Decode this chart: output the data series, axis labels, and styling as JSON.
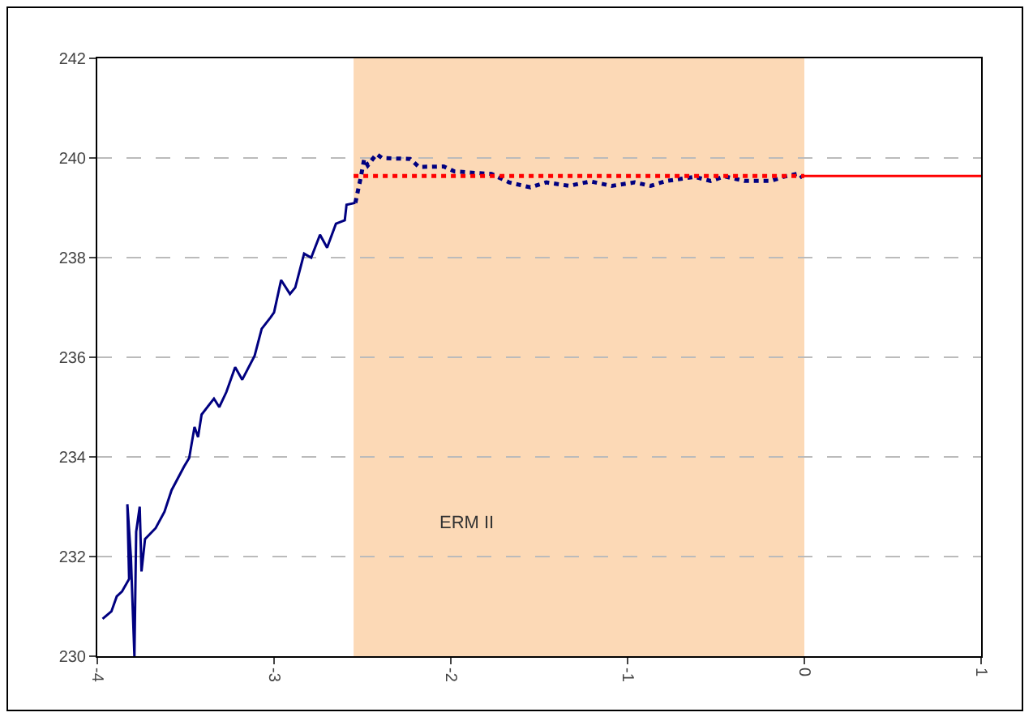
{
  "chart_data": {
    "type": "line",
    "xlim": [
      -4,
      1
    ],
    "xticks": [
      -4,
      -3,
      -2,
      -1,
      0,
      1
    ],
    "ylim": [
      230,
      242
    ],
    "yticks": [
      230,
      232,
      234,
      236,
      238,
      240,
      242
    ],
    "grid": "y",
    "bands": [
      {
        "axis": "x",
        "from": -2.55,
        "to": 0,
        "label": "ERM II",
        "color": "#fcd9b6"
      }
    ],
    "series": [
      {
        "color": "#000080",
        "line_style": "solid",
        "x": [
          -3.97,
          -3.92,
          -3.89,
          -3.86,
          -3.82,
          -3.83,
          -3.81,
          -3.79,
          -3.78,
          -3.76,
          -3.75,
          -3.73,
          -3.67,
          -3.62,
          -3.58,
          -3.51,
          -3.48,
          -3.45,
          -3.43,
          -3.41,
          -3.34,
          -3.31,
          -3.27,
          -3.22,
          -3.18,
          -3.11,
          -3.07,
          -3.02,
          -3.0,
          -2.96,
          -2.91,
          -2.88,
          -2.83,
          -2.79,
          -2.74,
          -2.7,
          -2.65,
          -2.6,
          -2.59,
          -2.54
        ],
        "values": [
          230.75,
          230.9,
          231.2,
          231.3,
          231.55,
          233.05,
          232.0,
          230.0,
          232.5,
          233.0,
          231.7,
          232.35,
          232.57,
          232.9,
          233.33,
          233.8,
          233.98,
          234.6,
          234.4,
          234.85,
          235.17,
          235.0,
          235.3,
          235.8,
          235.55,
          236.03,
          236.57,
          236.8,
          236.9,
          237.55,
          237.27,
          237.4,
          238.08,
          238.0,
          238.46,
          238.2,
          238.68,
          238.75,
          239.06,
          239.1
        ]
      },
      {
        "color": "#000080",
        "line_style": "dotted",
        "x": [
          -2.54,
          -2.51,
          -2.49,
          -2.47,
          -2.42,
          -2.39,
          -2.23,
          -2.18,
          -2.04,
          -1.98,
          -1.86,
          -1.77,
          -1.67,
          -1.55,
          -1.46,
          -1.33,
          -1.21,
          -1.09,
          -0.96,
          -0.87,
          -0.78,
          -0.62,
          -0.53,
          -0.45,
          -0.34,
          -0.19,
          -0.11,
          -0.03,
          -0.01
        ],
        "values": [
          239.1,
          239.6,
          239.98,
          239.85,
          240.08,
          240.0,
          239.98,
          239.82,
          239.83,
          239.73,
          239.7,
          239.68,
          239.51,
          239.41,
          239.51,
          239.44,
          239.53,
          239.44,
          239.51,
          239.44,
          239.54,
          239.62,
          239.54,
          239.63,
          239.54,
          239.54,
          239.63,
          239.69,
          239.6
        ]
      },
      {
        "color": "#ff0000",
        "line_style": "dotted",
        "x": [
          -2.55,
          0
        ],
        "values": [
          239.64,
          239.64
        ]
      },
      {
        "color": "#ff0000",
        "line_style": "solid",
        "x": [
          0,
          1
        ],
        "values": [
          239.64,
          239.64
        ]
      }
    ]
  }
}
